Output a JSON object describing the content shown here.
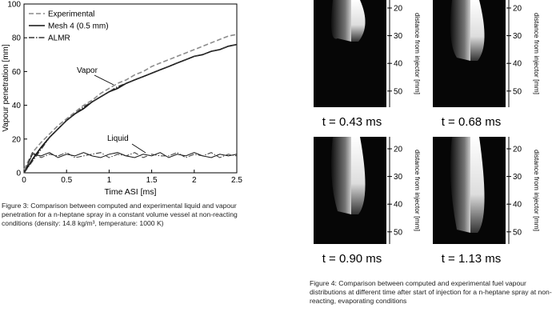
{
  "chart_data": {
    "type": "line",
    "x_label": "Time ASI [ms]",
    "y_label": "Vapour penetration [mm]",
    "x": [
      0,
      0.1,
      0.2,
      0.3,
      0.4,
      0.5,
      0.6,
      0.7,
      0.8,
      0.9,
      1.0,
      1.1,
      1.2,
      1.3,
      1.4,
      1.5,
      1.6,
      1.7,
      1.8,
      1.9,
      2.0,
      2.1,
      2.2,
      2.3,
      2.4,
      2.5
    ],
    "xlim": [
      0,
      2.5
    ],
    "xticks": [
      0,
      0.5,
      1,
      1.5,
      2,
      2.5
    ],
    "ylim": [
      0,
      100
    ],
    "yticks": [
      0,
      20,
      40,
      60,
      80,
      100
    ],
    "series": [
      {
        "name": "Experimental",
        "color": "#8c8c8c",
        "dash": "6,3",
        "values": [
          2,
          12,
          18,
          23,
          28,
          32,
          36,
          40,
          43,
          47,
          50,
          53,
          55,
          58,
          60,
          63,
          65,
          67,
          69,
          71,
          73,
          75,
          77,
          79,
          81,
          82
        ]
      },
      {
        "name": "Mesh 4 (0.5 mm)",
        "color": "#111111",
        "dash": "none",
        "values": [
          0,
          8,
          15,
          21,
          26,
          31,
          35,
          38,
          42,
          45,
          48,
          50,
          53,
          55,
          57,
          59,
          61,
          63,
          65,
          67,
          69,
          70,
          72,
          73,
          75,
          76
        ],
        "liquid_values": [
          0,
          11,
          10,
          12,
          9,
          11,
          10,
          12,
          10,
          9,
          11,
          12,
          10,
          9,
          11,
          10,
          12,
          9,
          11,
          10,
          12,
          10,
          9,
          11,
          10,
          11
        ]
      },
      {
        "name": "ALMR",
        "color": "#333333",
        "dash": "7,2,1.5,2",
        "values": [
          0,
          7,
          14,
          21,
          26,
          31,
          35,
          39,
          42,
          45,
          48,
          51,
          53,
          55,
          57,
          59,
          61,
          63,
          65,
          67,
          69,
          70,
          72,
          73,
          75,
          76
        ],
        "liquid_values": [
          0,
          12,
          9,
          11,
          10,
          12,
          9,
          10,
          11,
          12,
          9,
          11,
          10,
          12,
          9,
          11,
          10,
          10,
          12,
          9,
          11,
          10,
          12,
          9,
          11,
          10
        ]
      }
    ],
    "annotations": [
      "Vapor",
      "Liquid"
    ]
  },
  "figure3_caption": "Figure 3: Comparison between computed and experimental liquid and vapour penetration for a n-heptane spray in a constant volume vessel at non-reacting conditions (density: 14.8 kg/m³, temperature: 1000 K)",
  "image_axis": {
    "label": "distance from injector [mm]",
    "ticks": [
      20,
      30,
      40,
      50
    ]
  },
  "panels": [
    "t = 0.43 ms",
    "t = 0.68 ms",
    "t = 0.90 ms",
    "t = 1.13 ms"
  ],
  "figure4_caption": "Figure 4: Comparison between computed and experimental fuel vapour distributions at different time after start of injection for a n-heptane spray at non-reacting, evaporating conditions"
}
